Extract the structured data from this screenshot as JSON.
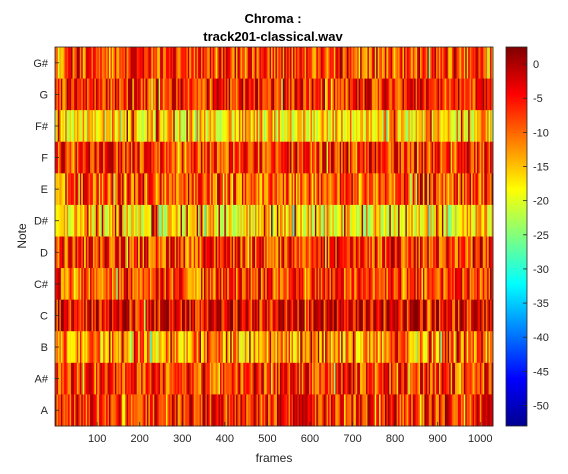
{
  "chart_data": {
    "type": "heatmap",
    "title_line1": "Chroma :",
    "title_line2": "track201-classical.wav",
    "xlabel": "frames",
    "ylabel": "Note",
    "y_categories_top_to_bottom": [
      "G#",
      "G",
      "F#",
      "F",
      "E",
      "D#",
      "D",
      "C#",
      "C",
      "B",
      "A#",
      "A"
    ],
    "x_range": [
      1,
      1030
    ],
    "x_ticks": [
      100,
      200,
      300,
      400,
      500,
      600,
      700,
      800,
      900,
      1000
    ],
    "colorbar": {
      "colormap": "jet",
      "range": [
        -53,
        2.5
      ],
      "ticks": [
        0,
        -5,
        -10,
        -15,
        -20,
        -25,
        -30,
        -35,
        -40,
        -45,
        -50
      ]
    },
    "rows_typical_level_dB": {
      "G#": -8,
      "G": -6,
      "F#": -16,
      "F": -7,
      "E": -9,
      "D#": -17,
      "D": -7,
      "C#": -8,
      "C": -4,
      "B": -13,
      "A#": -7,
      "A": -6
    },
    "n_frames": 1030
  }
}
